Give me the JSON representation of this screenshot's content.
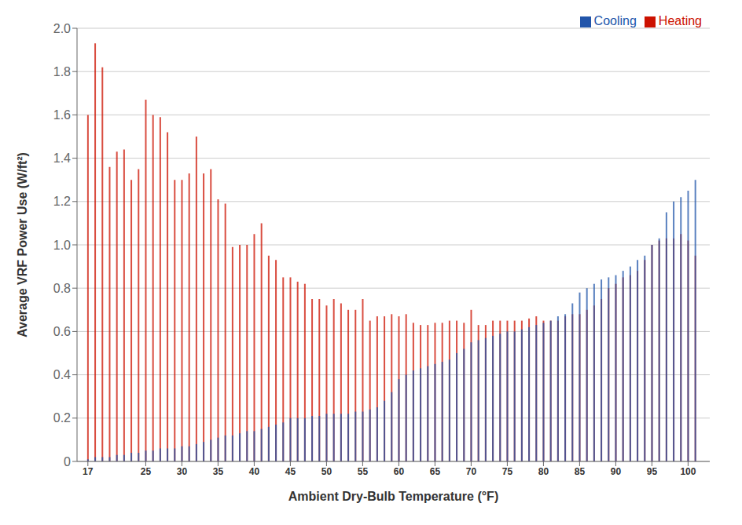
{
  "chart_data": {
    "type": "bar",
    "xlabel": "Ambient Dry-Bulb Temperature (°F)",
    "ylabel": "Average VRF Power Use (W/ft²)",
    "xlim": [
      15.5,
      103
    ],
    "ylim": [
      0,
      2.0
    ],
    "xticks": [
      17,
      25,
      30,
      35,
      40,
      45,
      50,
      55,
      60,
      65,
      70,
      75,
      80,
      85,
      90,
      95,
      100
    ],
    "yticks": [
      0,
      0.2,
      0.4,
      0.6,
      0.8,
      {
        "value": 1.0,
        "label": "1.0"
      },
      1.2,
      1.4,
      1.6,
      1.8,
      {
        "value": 2.0,
        "label": "2.0"
      }
    ],
    "grid": "y",
    "legend": "upper right",
    "x": [
      17,
      18,
      19,
      20,
      21,
      22,
      23,
      24,
      25,
      26,
      27,
      28,
      29,
      30,
      31,
      32,
      33,
      34,
      35,
      36,
      37,
      38,
      39,
      40,
      41,
      42,
      43,
      44,
      45,
      46,
      47,
      48,
      49,
      50,
      51,
      52,
      53,
      54,
      55,
      56,
      57,
      58,
      59,
      60,
      61,
      62,
      63,
      64,
      65,
      66,
      67,
      68,
      69,
      70,
      71,
      72,
      73,
      74,
      75,
      76,
      77,
      78,
      79,
      80,
      81,
      82,
      83,
      84,
      85,
      86,
      87,
      88,
      89,
      90,
      91,
      92,
      93,
      94,
      95,
      96,
      97,
      98,
      99,
      100,
      101
    ],
    "series": [
      {
        "name": "Heating",
        "color": "#CC1100",
        "values": [
          1.6,
          1.93,
          1.82,
          1.36,
          1.43,
          1.44,
          1.3,
          1.35,
          1.67,
          1.6,
          1.59,
          1.52,
          1.3,
          1.3,
          1.33,
          1.5,
          1.33,
          1.35,
          1.21,
          1.19,
          0.99,
          1.0,
          1.0,
          1.05,
          1.1,
          0.95,
          0.93,
          0.85,
          0.85,
          0.83,
          0.82,
          0.75,
          0.75,
          0.72,
          0.75,
          0.73,
          0.7,
          0.7,
          0.75,
          0.65,
          0.67,
          0.67,
          0.68,
          0.67,
          0.68,
          0.64,
          0.63,
          0.63,
          0.64,
          0.64,
          0.65,
          0.65,
          0.64,
          0.7,
          0.63,
          0.63,
          0.65,
          0.65,
          0.65,
          0.65,
          0.65,
          0.66,
          0.67,
          0.65,
          0.65,
          0.65,
          0.67,
          0.68,
          0.68,
          0.7,
          0.72,
          0.75,
          0.8,
          0.82,
          0.85,
          0.86,
          0.88,
          0.93,
          1.0,
          1.02,
          1.03,
          1.03,
          1.05,
          1.02,
          0.95
        ]
      },
      {
        "name": "Cooling",
        "color": "#2255AA",
        "values": [
          0.01,
          0.02,
          0.02,
          0.02,
          0.03,
          0.03,
          0.04,
          0.04,
          0.05,
          0.05,
          0.06,
          0.06,
          0.06,
          0.07,
          0.07,
          0.08,
          0.09,
          0.1,
          0.11,
          0.12,
          0.12,
          0.13,
          0.14,
          0.14,
          0.15,
          0.16,
          0.17,
          0.18,
          0.2,
          0.2,
          0.2,
          0.21,
          0.21,
          0.22,
          0.22,
          0.22,
          0.22,
          0.23,
          0.23,
          0.24,
          0.25,
          0.28,
          0.32,
          0.38,
          0.4,
          0.42,
          0.43,
          0.44,
          0.45,
          0.46,
          0.47,
          0.5,
          0.52,
          0.55,
          0.56,
          0.57,
          0.58,
          0.59,
          0.6,
          0.6,
          0.61,
          0.62,
          0.63,
          0.64,
          0.65,
          0.67,
          0.68,
          0.73,
          0.78,
          0.8,
          0.82,
          0.84,
          0.85,
          0.86,
          0.88,
          0.9,
          0.93,
          0.95,
          1.0,
          1.03,
          1.15,
          1.2,
          1.22,
          1.25,
          1.3
        ]
      }
    ]
  }
}
